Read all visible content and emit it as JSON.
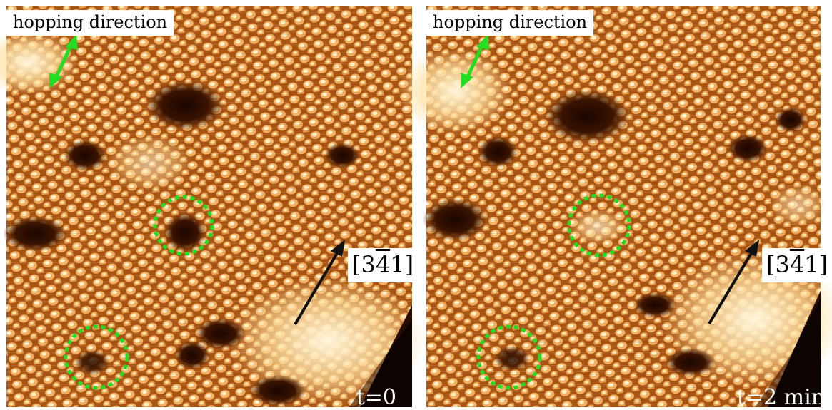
{
  "figure": {
    "panels": [
      {
        "id": "left",
        "hopping_label": "hopping direction",
        "direction_label": {
          "open": "[3",
          "bar": "4",
          "close": "1]"
        },
        "time_label": "t=0"
      },
      {
        "id": "right",
        "hopping_label": "hopping direction",
        "direction_label": {
          "open": "[3",
          "bar": "4",
          "close": "1]"
        },
        "time_label": "t=2 min"
      }
    ],
    "colors": {
      "hopping_arrow": "#22dd22",
      "defect_circle": "#22dd22",
      "direction_arrow": "#111111",
      "surface_dark": "#2a0e00",
      "surface_mid": "#c46a1c",
      "surface_bright": "#fff1c8"
    }
  }
}
